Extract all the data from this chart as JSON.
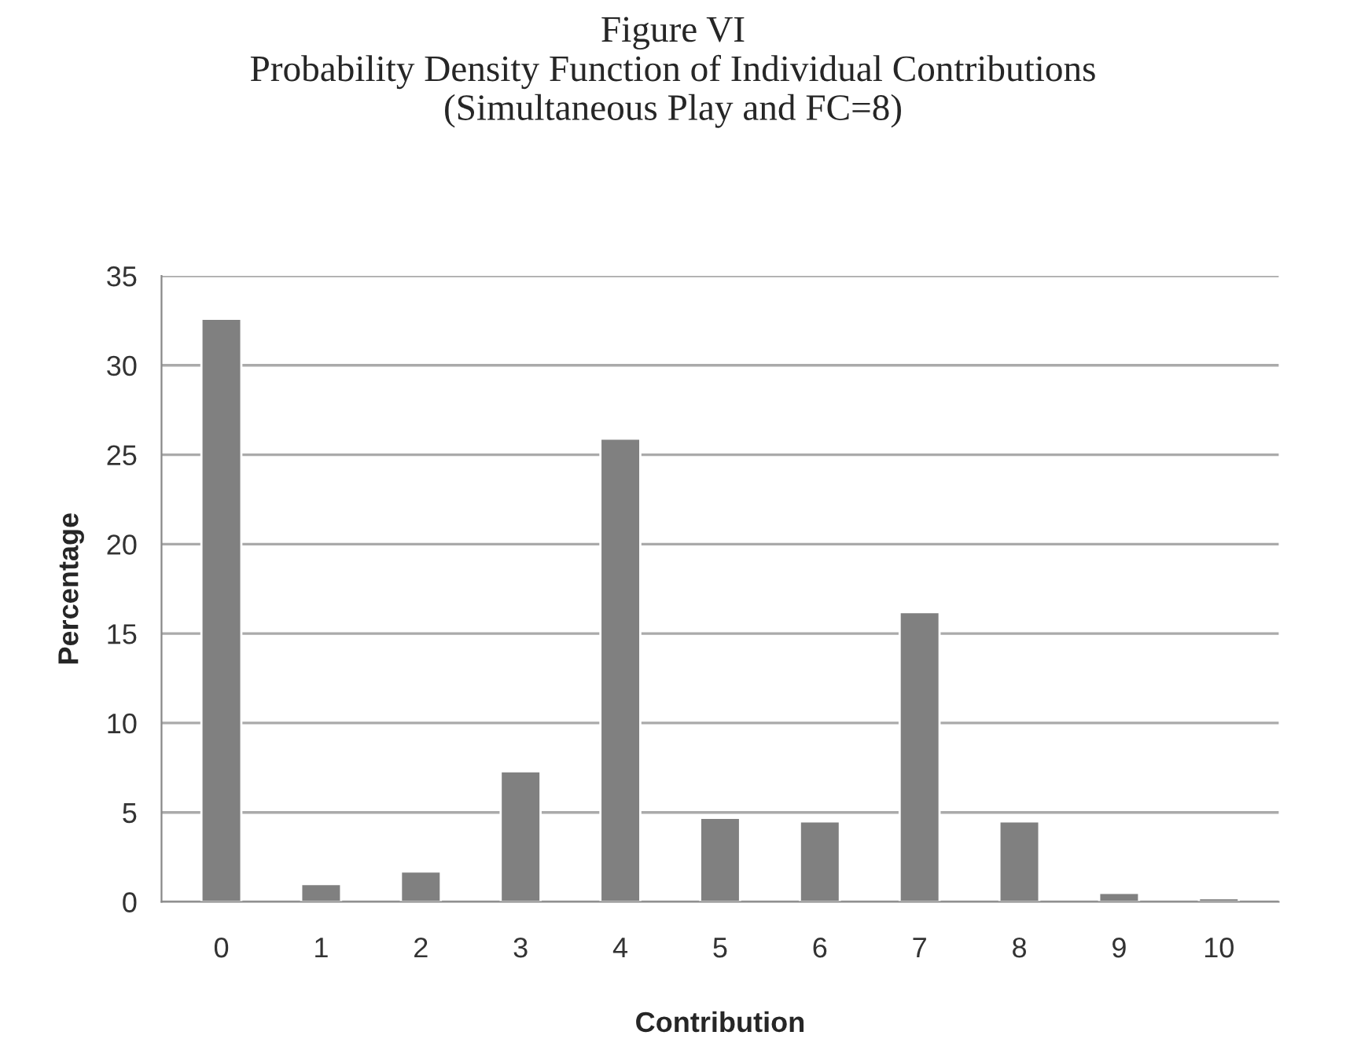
{
  "chart_data": {
    "type": "bar",
    "title": "Figure VI\nProbability Density Function of Individual Contributions\n(Simultaneous Play and FC=8)",
    "xlabel": "Contribution",
    "ylabel": "Percentage",
    "categories": [
      "0",
      "1",
      "2",
      "3",
      "4",
      "5",
      "6",
      "7",
      "8",
      "9",
      "10"
    ],
    "values": [
      32.6,
      1.0,
      1.7,
      7.3,
      25.9,
      4.7,
      4.5,
      16.2,
      4.5,
      0.5,
      0.2
    ],
    "color": "#808080",
    "ylim": [
      0,
      35
    ],
    "yticks": [
      0,
      5,
      10,
      15,
      20,
      25,
      30,
      35
    ],
    "grid": "y",
    "legend": false
  }
}
